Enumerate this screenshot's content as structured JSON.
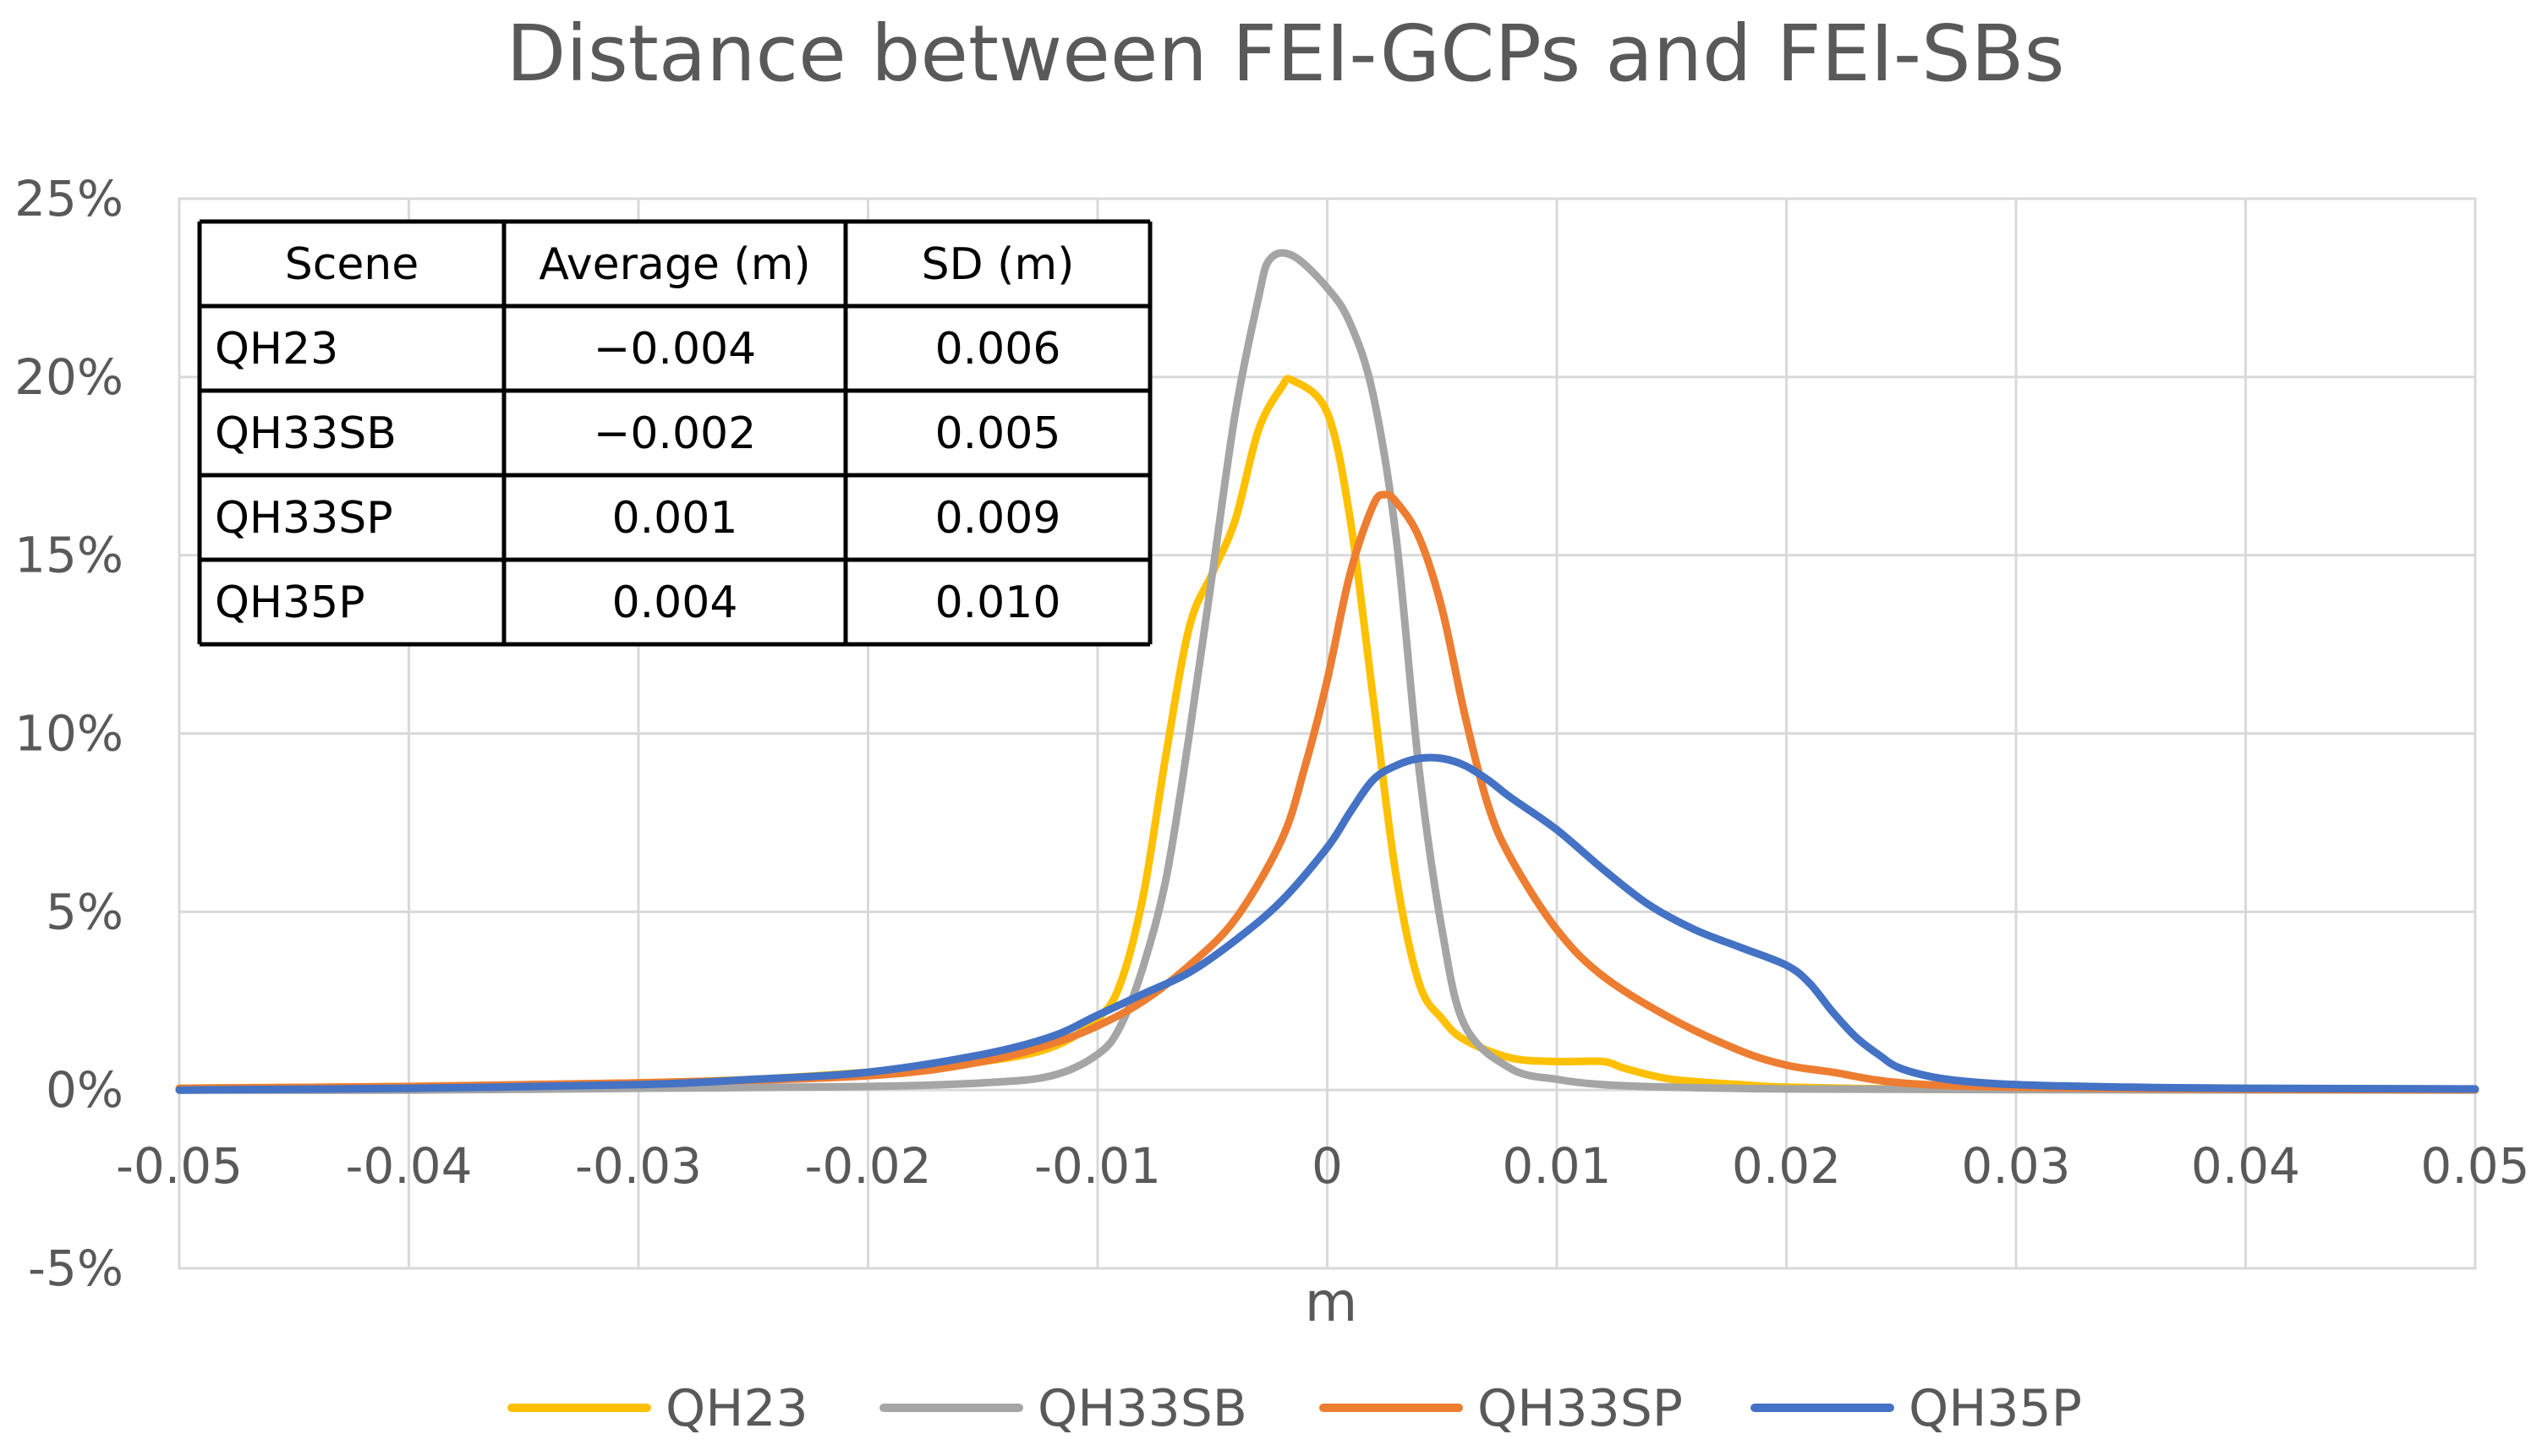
{
  "chart_data": {
    "type": "line",
    "title": "Distance between FEI-GCPs and FEI-SBs",
    "xlabel": "m",
    "ylabel": "",
    "xlim": [
      -0.05,
      0.05
    ],
    "ylim": [
      -0.05,
      0.25
    ],
    "x_ticks": [
      -0.05,
      -0.04,
      -0.03,
      -0.02,
      -0.01,
      0,
      0.01,
      0.02,
      0.03,
      0.04,
      0.05
    ],
    "x_tick_labels": [
      "-0.05",
      "-0.04",
      "-0.03",
      "-0.02",
      "-0.01",
      "0",
      "0.01",
      "0.02",
      "0.03",
      "0.04",
      "0.05"
    ],
    "y_ticks": [
      -0.05,
      0,
      0.05,
      0.1,
      0.15,
      0.2,
      0.25
    ],
    "y_tick_labels": [
      "-5%",
      "0%",
      "5%",
      "10%",
      "15%",
      "20%",
      "25%"
    ],
    "grid": true,
    "legend_position": "bottom",
    "series": [
      {
        "name": "QH23",
        "color": "#ffc000",
        "points": [
          [
            -0.05,
            0.0005
          ],
          [
            -0.04,
            0.001
          ],
          [
            -0.03,
            0.002
          ],
          [
            -0.025,
            0.003
          ],
          [
            -0.02,
            0.005
          ],
          [
            -0.015,
            0.008
          ],
          [
            -0.012,
            0.012
          ],
          [
            -0.01,
            0.02
          ],
          [
            -0.009,
            0.03
          ],
          [
            -0.008,
            0.055
          ],
          [
            -0.007,
            0.095
          ],
          [
            -0.006,
            0.13
          ],
          [
            -0.005,
            0.145
          ],
          [
            -0.004,
            0.16
          ],
          [
            -0.003,
            0.185
          ],
          [
            -0.002,
            0.197
          ],
          [
            -0.0015,
            0.199
          ],
          [
            0,
            0.19
          ],
          [
            0.001,
            0.16
          ],
          [
            0.002,
            0.11
          ],
          [
            0.003,
            0.06
          ],
          [
            0.004,
            0.03
          ],
          [
            0.005,
            0.02
          ],
          [
            0.006,
            0.014
          ],
          [
            0.008,
            0.009
          ],
          [
            0.01,
            0.008
          ],
          [
            0.012,
            0.008
          ],
          [
            0.013,
            0.006
          ],
          [
            0.015,
            0.003
          ],
          [
            0.018,
            0.0015
          ],
          [
            0.02,
            0.0008
          ],
          [
            0.025,
            0.0003
          ],
          [
            0.03,
            0.0002
          ],
          [
            0.04,
            0.0001
          ],
          [
            0.05,
            0.0001
          ]
        ]
      },
      {
        "name": "QH33SB",
        "color": "#a5a5a5",
        "points": [
          [
            -0.05,
            0.0
          ],
          [
            -0.04,
            0.0
          ],
          [
            -0.03,
            0.0005
          ],
          [
            -0.02,
            0.001
          ],
          [
            -0.015,
            0.002
          ],
          [
            -0.012,
            0.004
          ],
          [
            -0.01,
            0.01
          ],
          [
            -0.009,
            0.018
          ],
          [
            -0.008,
            0.035
          ],
          [
            -0.007,
            0.06
          ],
          [
            -0.006,
            0.1
          ],
          [
            -0.005,
            0.145
          ],
          [
            -0.004,
            0.19
          ],
          [
            -0.003,
            0.222
          ],
          [
            -0.0025,
            0.233
          ],
          [
            -0.0015,
            0.234
          ],
          [
            0,
            0.225
          ],
          [
            0.001,
            0.215
          ],
          [
            0.002,
            0.195
          ],
          [
            0.003,
            0.155
          ],
          [
            0.004,
            0.09
          ],
          [
            0.005,
            0.045
          ],
          [
            0.006,
            0.018
          ],
          [
            0.008,
            0.006
          ],
          [
            0.01,
            0.003
          ],
          [
            0.012,
            0.0015
          ],
          [
            0.015,
            0.0008
          ],
          [
            0.02,
            0.0003
          ],
          [
            0.03,
            0.0001
          ],
          [
            0.05,
            0.0
          ]
        ]
      },
      {
        "name": "QH33SP",
        "color": "#ed7d31",
        "points": [
          [
            -0.05,
            0.0005
          ],
          [
            -0.04,
            0.001
          ],
          [
            -0.03,
            0.002
          ],
          [
            -0.02,
            0.004
          ],
          [
            -0.015,
            0.008
          ],
          [
            -0.012,
            0.013
          ],
          [
            -0.01,
            0.018
          ],
          [
            -0.008,
            0.025
          ],
          [
            -0.006,
            0.035
          ],
          [
            -0.004,
            0.048
          ],
          [
            -0.002,
            0.07
          ],
          [
            -0.001,
            0.09
          ],
          [
            0,
            0.115
          ],
          [
            0.001,
            0.145
          ],
          [
            0.002,
            0.164
          ],
          [
            0.0025,
            0.167
          ],
          [
            0.003,
            0.165
          ],
          [
            0.004,
            0.155
          ],
          [
            0.005,
            0.135
          ],
          [
            0.006,
            0.105
          ],
          [
            0.007,
            0.08
          ],
          [
            0.008,
            0.065
          ],
          [
            0.01,
            0.045
          ],
          [
            0.012,
            0.032
          ],
          [
            0.015,
            0.02
          ],
          [
            0.018,
            0.011
          ],
          [
            0.02,
            0.007
          ],
          [
            0.022,
            0.005
          ],
          [
            0.025,
            0.002
          ],
          [
            0.03,
            0.0008
          ],
          [
            0.04,
            0.0002
          ],
          [
            0.05,
            0.0001
          ]
        ]
      },
      {
        "name": "QH35P",
        "color": "#4472c4",
        "points": [
          [
            -0.05,
            0.0
          ],
          [
            -0.04,
            0.0005
          ],
          [
            -0.03,
            0.0015
          ],
          [
            -0.025,
            0.003
          ],
          [
            -0.02,
            0.005
          ],
          [
            -0.015,
            0.01
          ],
          [
            -0.012,
            0.015
          ],
          [
            -0.01,
            0.021
          ],
          [
            -0.008,
            0.027
          ],
          [
            -0.006,
            0.033
          ],
          [
            -0.004,
            0.042
          ],
          [
            -0.002,
            0.053
          ],
          [
            0,
            0.068
          ],
          [
            0.001,
            0.078
          ],
          [
            0.002,
            0.087
          ],
          [
            0.003,
            0.091
          ],
          [
            0.004,
            0.093
          ],
          [
            0.005,
            0.093
          ],
          [
            0.006,
            0.091
          ],
          [
            0.007,
            0.087
          ],
          [
            0.008,
            0.082
          ],
          [
            0.01,
            0.073
          ],
          [
            0.012,
            0.062
          ],
          [
            0.014,
            0.052
          ],
          [
            0.016,
            0.045
          ],
          [
            0.018,
            0.04
          ],
          [
            0.02,
            0.035
          ],
          [
            0.021,
            0.03
          ],
          [
            0.022,
            0.022
          ],
          [
            0.023,
            0.015
          ],
          [
            0.024,
            0.01
          ],
          [
            0.025,
            0.006
          ],
          [
            0.027,
            0.003
          ],
          [
            0.03,
            0.0015
          ],
          [
            0.035,
            0.0008
          ],
          [
            0.04,
            0.0005
          ],
          [
            0.05,
            0.0003
          ]
        ]
      }
    ],
    "annotation_table": {
      "headers": [
        "Scene",
        "Average (m)",
        "SD (m)"
      ],
      "rows": [
        [
          "QH23",
          "−0.004",
          "0.006"
        ],
        [
          "QH33SB",
          "−0.002",
          "0.005"
        ],
        [
          "QH33SP",
          "0.001",
          "0.009"
        ],
        [
          "QH35P",
          "0.004",
          "0.010"
        ]
      ]
    }
  }
}
